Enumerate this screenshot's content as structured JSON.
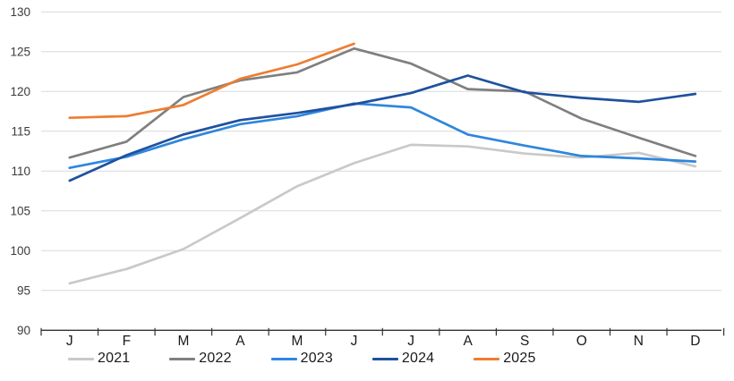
{
  "chart_data": {
    "type": "line",
    "title": "",
    "xlabel": "",
    "ylabel": "",
    "categories": [
      "J",
      "F",
      "M",
      "A",
      "M",
      "J",
      "J",
      "A",
      "S",
      "O",
      "N",
      "D"
    ],
    "ylim": [
      90,
      130
    ],
    "yticks": [
      90,
      95,
      100,
      105,
      110,
      115,
      120,
      125,
      130
    ],
    "grid": "horizontal",
    "legend_position": "bottom",
    "series": [
      {
        "name": "2021",
        "color": "#C9C9C9",
        "values": [
          95.9,
          97.7,
          100.2,
          104.1,
          108.1,
          111.0,
          113.3,
          113.1,
          112.2,
          111.7,
          112.3,
          110.6
        ]
      },
      {
        "name": "2022",
        "color": "#7F7F7F",
        "values": [
          111.7,
          113.7,
          119.3,
          121.4,
          122.4,
          125.4,
          123.5,
          120.3,
          120.0,
          116.6,
          114.2,
          111.9
        ]
      },
      {
        "name": "2023",
        "color": "#2E86DE",
        "values": [
          110.4,
          111.8,
          114.0,
          115.9,
          116.9,
          118.5,
          118.0,
          114.6,
          113.2,
          111.9,
          111.6,
          111.2
        ]
      },
      {
        "name": "2024",
        "color": "#1F519E",
        "values": [
          108.8,
          112.0,
          114.6,
          116.4,
          117.3,
          118.4,
          119.8,
          122.0,
          119.9,
          119.2,
          118.7,
          119.7
        ]
      },
      {
        "name": "2025",
        "color": "#ED7D31",
        "values": [
          116.7,
          116.9,
          118.3,
          121.6,
          123.4,
          126.0
        ]
      }
    ],
    "colors": {
      "gridline": "#D9D9D9",
      "axis": "#333333",
      "tick_label": "#3B3B3B",
      "background": "#FFFFFF"
    }
  }
}
